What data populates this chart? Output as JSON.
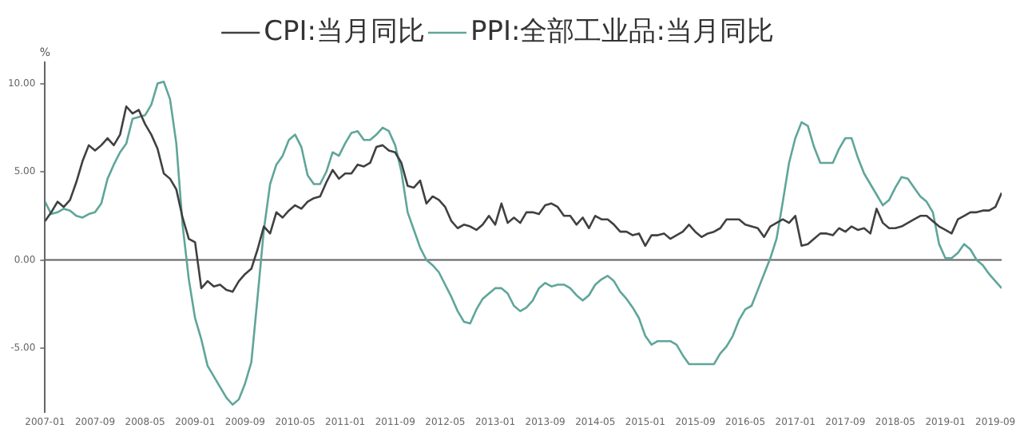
{
  "chart_data": {
    "type": "line",
    "ylabel": "%",
    "legend": "top",
    "grid": false,
    "marker": "none",
    "line_style": "solid",
    "x": [
      "2007-01",
      "2007-02",
      "2007-03",
      "2007-04",
      "2007-05",
      "2007-06",
      "2007-07",
      "2007-08",
      "2007-09",
      "2007-10",
      "2007-11",
      "2007-12",
      "2008-01",
      "2008-02",
      "2008-03",
      "2008-04",
      "2008-05",
      "2008-06",
      "2008-07",
      "2008-08",
      "2008-09",
      "2008-10",
      "2008-11",
      "2008-12",
      "2009-01",
      "2009-02",
      "2009-03",
      "2009-04",
      "2009-05",
      "2009-06",
      "2009-07",
      "2009-08",
      "2009-09",
      "2009-10",
      "2009-11",
      "2009-12",
      "2010-01",
      "2010-02",
      "2010-03",
      "2010-04",
      "2010-05",
      "2010-06",
      "2010-07",
      "2010-08",
      "2010-09",
      "2010-10",
      "2010-11",
      "2010-12",
      "2011-01",
      "2011-02",
      "2011-03",
      "2011-04",
      "2011-05",
      "2011-06",
      "2011-07",
      "2011-08",
      "2011-09",
      "2011-10",
      "2011-11",
      "2011-12",
      "2012-01",
      "2012-02",
      "2012-03",
      "2012-04",
      "2012-05",
      "2012-06",
      "2012-07",
      "2012-08",
      "2012-09",
      "2012-10",
      "2012-11",
      "2012-12",
      "2013-01",
      "2013-02",
      "2013-03",
      "2013-04",
      "2013-05",
      "2013-06",
      "2013-07",
      "2013-08",
      "2013-09",
      "2013-10",
      "2013-11",
      "2013-12",
      "2014-01",
      "2014-02",
      "2014-03",
      "2014-04",
      "2014-05",
      "2014-06",
      "2014-07",
      "2014-08",
      "2014-09",
      "2014-10",
      "2014-11",
      "2014-12",
      "2015-01",
      "2015-02",
      "2015-03",
      "2015-04",
      "2015-05",
      "2015-06",
      "2015-07",
      "2015-08",
      "2015-09",
      "2015-10",
      "2015-11",
      "2015-12",
      "2016-01",
      "2016-02",
      "2016-03",
      "2016-04",
      "2016-05",
      "2016-06",
      "2016-07",
      "2016-08",
      "2016-09",
      "2016-10",
      "2016-11",
      "2016-12",
      "2017-01",
      "2017-02",
      "2017-03",
      "2017-04",
      "2017-05",
      "2017-06",
      "2017-07",
      "2017-08",
      "2017-09",
      "2017-10",
      "2017-11",
      "2017-12",
      "2018-01",
      "2018-02",
      "2018-03",
      "2018-04",
      "2018-05",
      "2018-06",
      "2018-07",
      "2018-08",
      "2018-09",
      "2018-10",
      "2018-11",
      "2018-12",
      "2019-01",
      "2019-02",
      "2019-03",
      "2019-04",
      "2019-05",
      "2019-06",
      "2019-07",
      "2019-08",
      "2019-09",
      "2019-10"
    ],
    "series": [
      {
        "name": "CPI:当月同比",
        "color": "#404040",
        "values": [
          2.2,
          2.7,
          3.3,
          3.0,
          3.4,
          4.4,
          5.6,
          6.5,
          6.2,
          6.5,
          6.9,
          6.5,
          7.1,
          8.7,
          8.3,
          8.5,
          7.7,
          7.1,
          6.3,
          4.9,
          4.6,
          4.0,
          2.4,
          1.2,
          1.0,
          -1.6,
          -1.2,
          -1.5,
          -1.4,
          -1.7,
          -1.8,
          -1.2,
          -0.8,
          -0.5,
          0.6,
          1.9,
          1.5,
          2.7,
          2.4,
          2.8,
          3.1,
          2.9,
          3.3,
          3.5,
          3.6,
          4.4,
          5.1,
          4.6,
          4.9,
          4.9,
          5.4,
          5.3,
          5.5,
          6.4,
          6.5,
          6.2,
          6.1,
          5.5,
          4.2,
          4.1,
          4.5,
          3.2,
          3.6,
          3.4,
          3.0,
          2.2,
          1.8,
          2.0,
          1.9,
          1.7,
          2.0,
          2.5,
          2.0,
          3.2,
          2.1,
          2.4,
          2.1,
          2.7,
          2.7,
          2.6,
          3.1,
          3.2,
          3.0,
          2.5,
          2.5,
          2.0,
          2.4,
          1.8,
          2.5,
          2.3,
          2.3,
          2.0,
          1.6,
          1.6,
          1.4,
          1.5,
          0.8,
          1.4,
          1.4,
          1.5,
          1.2,
          1.4,
          1.6,
          2.0,
          1.6,
          1.3,
          1.5,
          1.6,
          1.8,
          2.3,
          2.3,
          2.3,
          2.0,
          1.9,
          1.8,
          1.3,
          1.9,
          2.1,
          2.3,
          2.1,
          2.5,
          0.8,
          0.9,
          1.2,
          1.5,
          1.5,
          1.4,
          1.8,
          1.6,
          1.9,
          1.7,
          1.8,
          1.5,
          2.9,
          2.1,
          1.8,
          1.8,
          1.9,
          2.1,
          2.3,
          2.5,
          2.5,
          2.2,
          1.9,
          1.7,
          1.5,
          2.3,
          2.5,
          2.7,
          2.7,
          2.8,
          2.8,
          3.0,
          3.8
        ]
      },
      {
        "name": "PPI:全部工业品:当月同比",
        "color": "#5fa59a",
        "values": [
          3.3,
          2.6,
          2.7,
          2.9,
          2.8,
          2.5,
          2.4,
          2.6,
          2.7,
          3.2,
          4.6,
          5.4,
          6.1,
          6.6,
          8.0,
          8.1,
          8.2,
          8.8,
          10.0,
          10.1,
          9.1,
          6.6,
          2.0,
          -1.1,
          -3.3,
          -4.5,
          -6.0,
          -6.6,
          -7.2,
          -7.8,
          -8.2,
          -7.9,
          -7.0,
          -5.8,
          -2.1,
          1.7,
          4.3,
          5.4,
          5.9,
          6.8,
          7.1,
          6.4,
          4.8,
          4.3,
          4.3,
          5.0,
          6.1,
          5.9,
          6.6,
          7.2,
          7.3,
          6.8,
          6.8,
          7.1,
          7.5,
          7.3,
          6.5,
          5.0,
          2.7,
          1.7,
          0.7,
          0.0,
          -0.3,
          -0.7,
          -1.4,
          -2.1,
          -2.9,
          -3.5,
          -3.6,
          -2.8,
          -2.2,
          -1.9,
          -1.6,
          -1.6,
          -1.9,
          -2.6,
          -2.9,
          -2.7,
          -2.3,
          -1.6,
          -1.3,
          -1.5,
          -1.4,
          -1.4,
          -1.6,
          -2.0,
          -2.3,
          -2.0,
          -1.4,
          -1.1,
          -0.9,
          -1.2,
          -1.8,
          -2.2,
          -2.7,
          -3.3,
          -4.3,
          -4.8,
          -4.6,
          -4.6,
          -4.6,
          -4.8,
          -5.4,
          -5.9,
          -5.9,
          -5.9,
          -5.9,
          -5.9,
          -5.3,
          -4.9,
          -4.3,
          -3.4,
          -2.8,
          -2.6,
          -1.7,
          -0.8,
          0.1,
          1.2,
          3.3,
          5.5,
          6.9,
          7.8,
          7.6,
          6.4,
          5.5,
          5.5,
          5.5,
          6.3,
          6.9,
          6.9,
          5.8,
          4.9,
          4.3,
          3.7,
          3.1,
          3.4,
          4.1,
          4.7,
          4.6,
          4.1,
          3.6,
          3.3,
          2.7,
          0.9,
          0.1,
          0.1,
          0.4,
          0.9,
          0.6,
          0.0,
          -0.3,
          -0.8,
          -1.2,
          -1.6
        ]
      }
    ],
    "xlim": [
      "2007-01",
      "2019-10"
    ],
    "xticks": [
      "2007-01",
      "2007-09",
      "2008-05",
      "2009-01",
      "2009-09",
      "2010-05",
      "2011-01",
      "2011-09",
      "2012-05",
      "2013-01",
      "2013-09",
      "2014-05",
      "2015-01",
      "2015-09",
      "2016-05",
      "2017-01",
      "2017-09",
      "2018-05",
      "2019-01",
      "2019-09"
    ],
    "ylim": [
      -8.6,
      11.2
    ],
    "yticks": [
      {
        "value": -5,
        "label": "-5.00"
      },
      {
        "value": 0,
        "label": "0.00"
      },
      {
        "value": 5,
        "label": "5.00"
      },
      {
        "value": 10,
        "label": "10.00"
      }
    ],
    "ref_lines": [
      {
        "axis": "y",
        "value": 0,
        "color": "#606060"
      }
    ]
  }
}
